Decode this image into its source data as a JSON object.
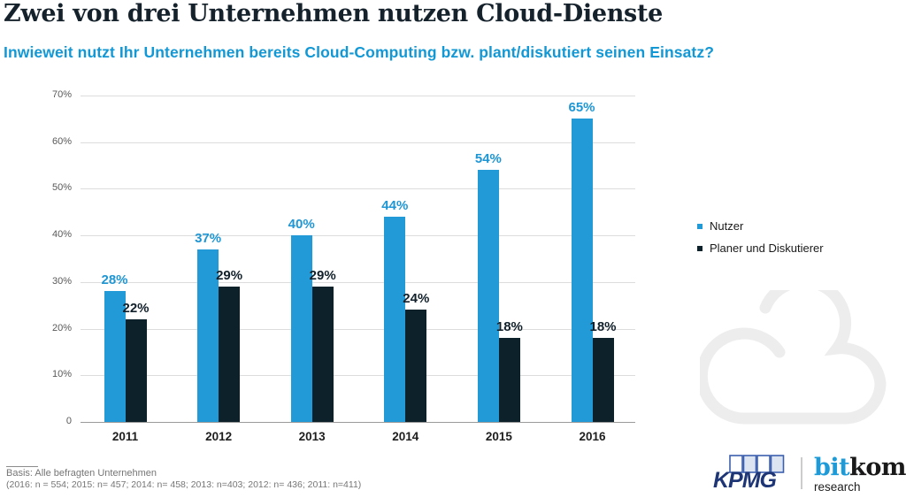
{
  "header": {
    "title": "Zwei von drei Unternehmen nutzen Cloud-Dienste",
    "subtitle": "Inwieweit nutzt Ihr Unternehmen bereits Cloud-Computing bzw. plant/diskutiert seinen Einsatz?"
  },
  "chart_data": {
    "type": "bar",
    "title": "Zwei von drei Unternehmen nutzen Cloud-Dienste",
    "categories": [
      "2011",
      "2012",
      "2013",
      "2014",
      "2015",
      "2016"
    ],
    "series": [
      {
        "key": "nutzer",
        "name": "Nutzer",
        "color": "#229ad8",
        "label_color": "#1e96d4",
        "values": [
          28,
          37,
          40,
          44,
          54,
          65
        ]
      },
      {
        "key": "planer-und-diskutierer",
        "name": "Planer und Diskutierer",
        "color": "#0c2129",
        "label_color": "#11202a",
        "values": [
          22,
          29,
          29,
          24,
          18,
          18
        ]
      }
    ],
    "value_suffix": "%",
    "ylim": [
      0,
      70
    ],
    "yticks": [
      {
        "value": 0,
        "label": "0"
      },
      {
        "value": 10,
        "label": "10%"
      },
      {
        "value": 20,
        "label": "20%"
      },
      {
        "value": 30,
        "label": "30%"
      },
      {
        "value": 40,
        "label": "40%"
      },
      {
        "value": 50,
        "label": "50%"
      },
      {
        "value": 60,
        "label": "60%"
      },
      {
        "value": 70,
        "label": "70%"
      }
    ],
    "grid": "horizontal",
    "legend_position": "right"
  },
  "legend": {
    "items": [
      {
        "label": "Nutzer",
        "color": "#229ad8"
      },
      {
        "label": "Planer und Diskutierer",
        "color": "#0c2129"
      }
    ]
  },
  "footer": {
    "basis": "Basis: Alle befragten Unternehmen",
    "sample_sizes": "(2016: n = 554; 2015: n= 457; 2014: n= 458; 2013: n=403; 2012: n= 436; 2011: n=411)"
  },
  "branding": {
    "kpmg_label": "KPMG",
    "bitkom_part1": "bit",
    "bitkom_part2": "kom",
    "bitkom_sub": "research"
  },
  "icons": {
    "cloud_icon_color": "#ededed"
  },
  "colors": {
    "accent_blue": "#229ad8",
    "dark_navy": "#0c2129",
    "subtitle_blue": "#1398d6",
    "title_color": "#15222c"
  }
}
